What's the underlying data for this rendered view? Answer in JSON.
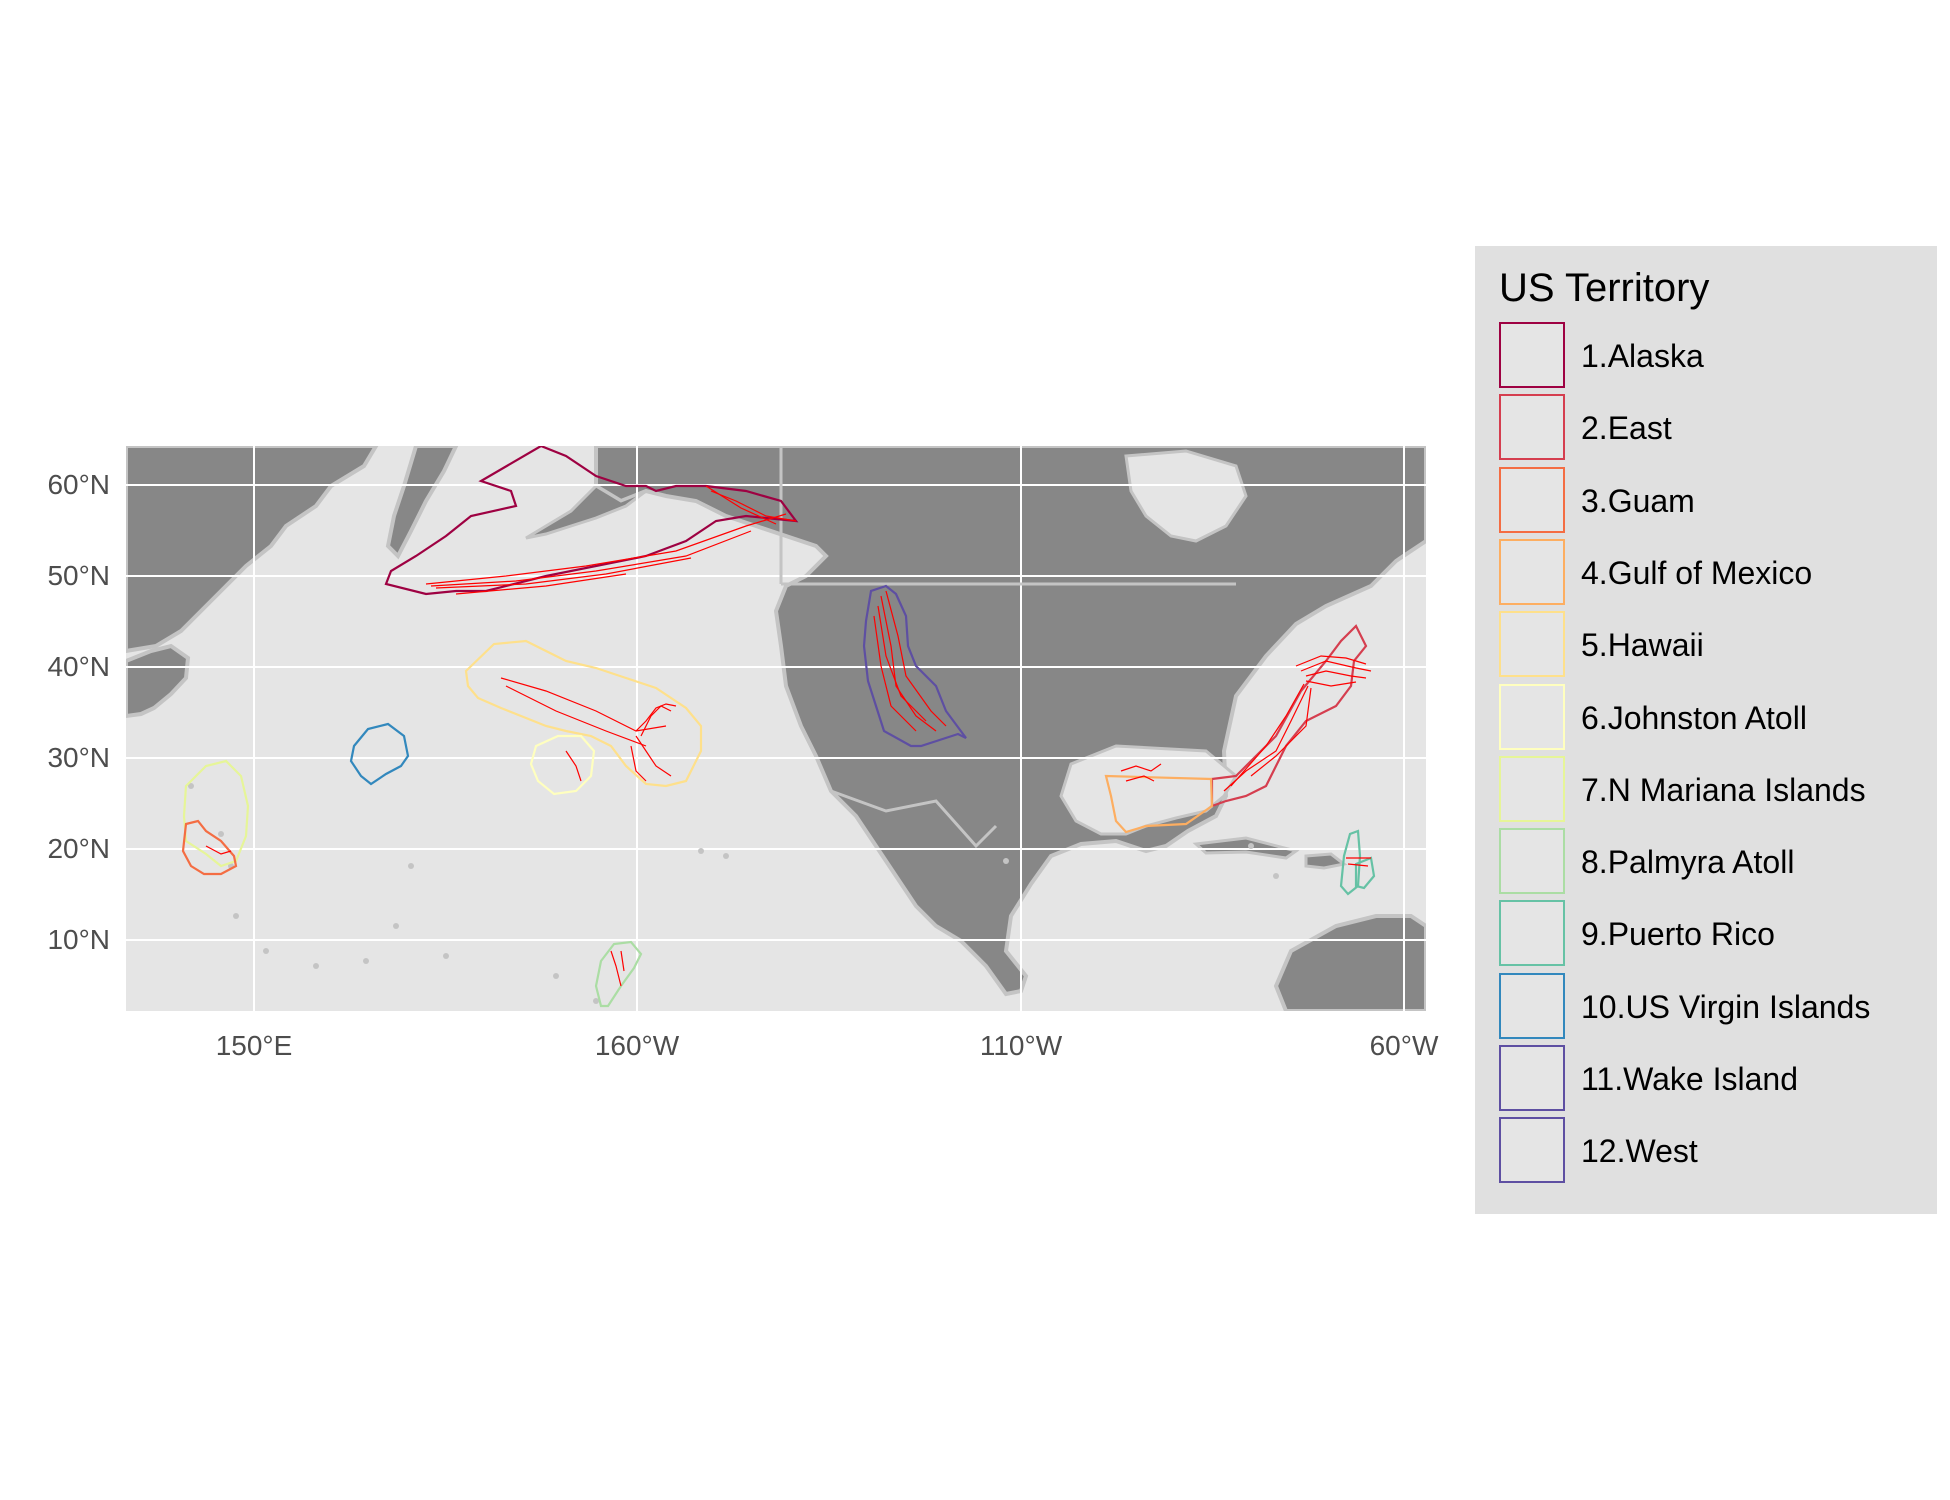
{
  "legend": {
    "title": "US Territory",
    "items": [
      {
        "label": "1.Alaska",
        "color": "#9E0142"
      },
      {
        "label": "2.East",
        "color": "#D53E4F"
      },
      {
        "label": "3.Guam",
        "color": "#F46D43"
      },
      {
        "label": "4.Gulf of Mexico",
        "color": "#FDAE61"
      },
      {
        "label": "5.Hawaii",
        "color": "#FEE08B"
      },
      {
        "label": "6.Johnston Atoll",
        "color": "#FFFFBF"
      },
      {
        "label": "7.N Mariana Islands",
        "color": "#E6F598"
      },
      {
        "label": "8.Palmyra Atoll",
        "color": "#ABDDA4"
      },
      {
        "label": "9.Puerto Rico",
        "color": "#66C2A5"
      },
      {
        "label": "10.US Virgin Islands",
        "color": "#3288BD"
      },
      {
        "label": "11.Wake Island",
        "color": "#5E4FA2"
      },
      {
        "label": "12.West",
        "color": "#5E4FA2"
      }
    ]
  },
  "axes": {
    "y_ticks": [
      "60°N",
      "50°N",
      "40°N",
      "30°N",
      "20°N",
      "10°N"
    ],
    "x_ticks": [
      "150°E",
      "160°W",
      "110°W",
      "60°W"
    ]
  },
  "colors": {
    "panel_background": "#E5E5E5",
    "land": "#878787",
    "coast_outline": "#C4C4C4",
    "grid": "#FFFFFF",
    "cable_lines": "#FF0000"
  }
}
